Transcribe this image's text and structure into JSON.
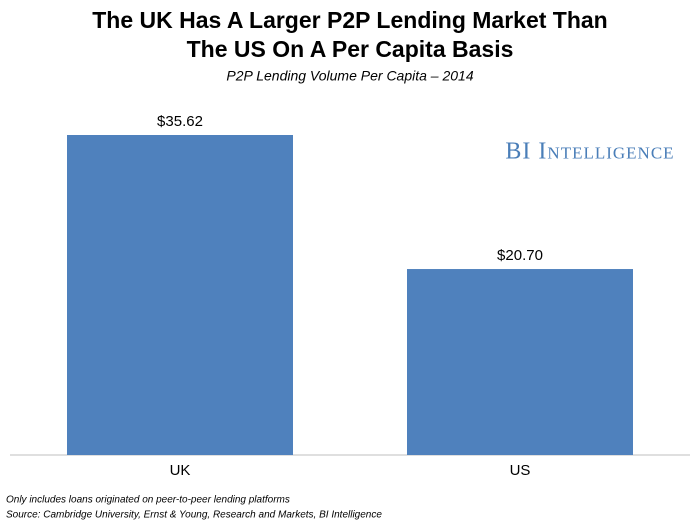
{
  "chart_data": {
    "type": "bar",
    "title": "The UK Has A Larger P2P Lending Market Than The US On A Per Capita Basis",
    "subtitle": "P2P Lending Volume Per Capita – 2014",
    "categories": [
      "UK",
      "US"
    ],
    "values": [
      35.62,
      20.7
    ],
    "value_labels": [
      "$35.62",
      "$20.70"
    ],
    "color": "#4f81bd",
    "logo": "BI Intelligence",
    "notes": [
      "Only includes loans originated on peer-to-peer lending platforms",
      "Source: Cambridge University, Ernst & Young, Research and Markets, BI Intelligence"
    ]
  }
}
